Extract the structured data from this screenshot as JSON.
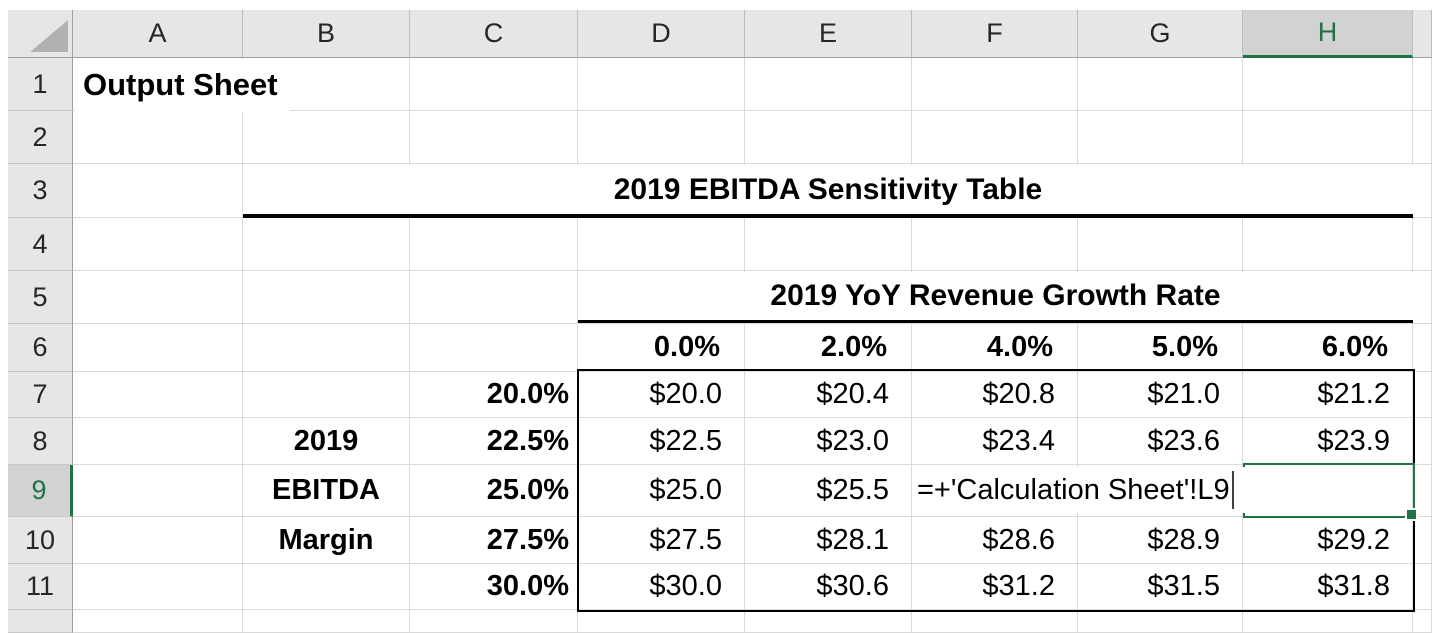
{
  "colors": {
    "selection_green": "#217346",
    "header_bg": "#e6e6e6",
    "header_selected_bg": "#d2d2d2",
    "gridline": "#dadada",
    "table_border": "#000000"
  },
  "column_headers": [
    "A",
    "B",
    "C",
    "D",
    "E",
    "F",
    "G",
    "H"
  ],
  "row_headers": [
    "1",
    "2",
    "3",
    "4",
    "5",
    "6",
    "7",
    "8",
    "9",
    "10",
    "11"
  ],
  "selection": {
    "active_cell": "H9",
    "active_column": "H",
    "active_row": "9"
  },
  "edit": {
    "editing_cell": "H9",
    "formula_text": "=+'Calculation Sheet'!L9"
  },
  "merged_titles": {
    "row3": "2019 EBITDA Sensitivity Table",
    "row5": "2019 YoY Revenue Growth Rate"
  },
  "cells": {
    "A1": "Output Sheet",
    "B8": "2019",
    "B9": "EBITDA",
    "B10": "Margin",
    "C7": "20.0%",
    "C8": "22.5%",
    "C9": "25.0%",
    "C10": "27.5%",
    "C11": "30.0%",
    "D6": "0.0%",
    "E6": "2.0%",
    "F6": "4.0%",
    "G6": "5.0%",
    "H6": "6.0%",
    "D7": "$20.0",
    "E7": "$20.4",
    "F7": "$20.8",
    "G7": "$21.0",
    "H7": "$21.2",
    "D8": "$22.5",
    "E8": "$23.0",
    "F8": "$23.4",
    "G8": "$23.6",
    "H8": "$23.9",
    "D9": "$25.0",
    "E9": "$25.5",
    "D10": "$27.5",
    "E10": "$28.1",
    "F10": "$28.6",
    "G10": "$28.9",
    "H10": "$29.2",
    "D11": "$30.0",
    "E11": "$30.6",
    "F11": "$31.2",
    "G11": "$31.5",
    "H11": "$31.8"
  }
}
